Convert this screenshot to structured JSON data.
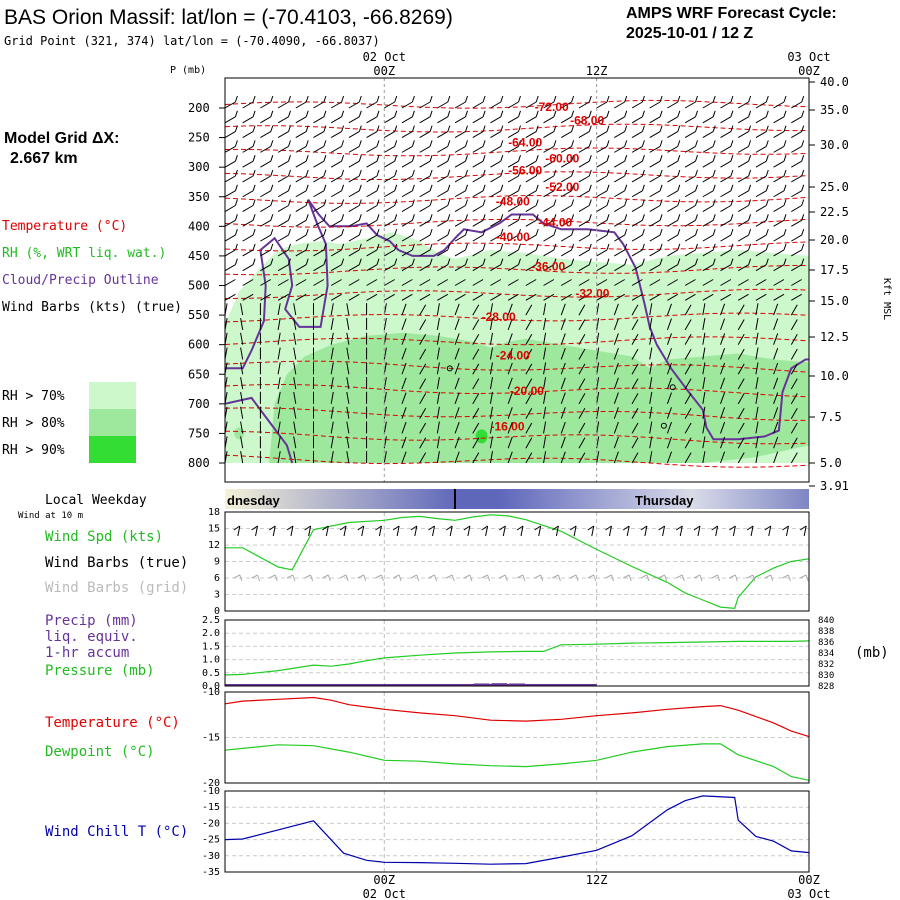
{
  "header": {
    "title": "BAS Orion Massif:  lat/lon = (-70.4103, -66.8269)",
    "subtitle": "Grid Point (321, 374) lat/lon = (-70.4090, -66.8037)",
    "cycle_line1": "AMPS WRF Forecast Cycle:",
    "cycle_line2": "2025-10-01 / 12  Z"
  },
  "sidebar": {
    "model_grid_label": "Model Grid ΔX:",
    "model_grid_value": "2.667 km",
    "temperature": "Temperature (°C)",
    "rh": "RH (%, WRT liq. wat.)",
    "cloud": "Cloud/Precip Outline",
    "wind": "Wind Barbs (kts) (true)",
    "legend": [
      {
        "label": "RH > 70%",
        "color": "#ccf8cc"
      },
      {
        "label": "RH > 80%",
        "color": "#9ee89e"
      },
      {
        "label": "RH > 90%",
        "color": "#33dd33"
      }
    ]
  },
  "colors": {
    "temperature": "#e00000",
    "dewpoint": "#22cc22",
    "windchill": "#0000aa",
    "cloud": "#663399",
    "precip": "#663399",
    "pressure": "#22cc22"
  },
  "time_axis": {
    "top_ticks": [
      {
        "l1": "02 Oct",
        "l2": "00Z"
      },
      {
        "l1": "",
        "l2": "12Z"
      },
      {
        "l1": "03 Oct",
        "l2": "00Z"
      }
    ],
    "bottom_ticks": [
      {
        "l1": "00Z",
        "l2": "02 Oct"
      },
      {
        "l1": "12Z",
        "l2": ""
      },
      {
        "l1": "00Z",
        "l2": "03 Oct"
      }
    ],
    "weekday_label": "Local Weekday",
    "weekday_left": "dnesday",
    "weekday_right": "Thursday"
  },
  "chart_data": [
    {
      "type": "contour",
      "ylabel_left": "P (mb)",
      "ylabel_right": "Kft MSL",
      "pressure_ticks": [
        "200",
        "250",
        "300",
        "350",
        "400",
        "450",
        "500",
        "550",
        "600",
        "650",
        "700",
        "750",
        "800"
      ],
      "height_ticks": [
        "40.0",
        "35.0",
        "30.0",
        "25.0",
        "22.5",
        "20.0",
        "17.5",
        "15.0",
        "12.5",
        "10.0",
        "7.5",
        "5.0",
        "3.91"
      ],
      "isotherm_labels": [
        {
          "text": "-72.00",
          "t": 8.5,
          "p": 205
        },
        {
          "text": "-68.00",
          "t": 10.5,
          "p": 228
        },
        {
          "text": "-64.00",
          "t": 7.0,
          "p": 265
        },
        {
          "text": "-60.00",
          "t": 9.1,
          "p": 292
        },
        {
          "text": "-56.00",
          "t": 7.0,
          "p": 312
        },
        {
          "text": "-52.00",
          "t": 9.1,
          "p": 340
        },
        {
          "text": "-48.00",
          "t": 6.3,
          "p": 365
        },
        {
          "text": "-44.00",
          "t": 8.7,
          "p": 400
        },
        {
          "text": "-40.00",
          "t": 6.3,
          "p": 425
        },
        {
          "text": "-36.00",
          "t": 8.3,
          "p": 475
        },
        {
          "text": "-32.00",
          "t": 10.8,
          "p": 520
        },
        {
          "text": "-28.00",
          "t": 5.5,
          "p": 560
        },
        {
          "text": "-24.00",
          "t": 6.3,
          "p": 625
        },
        {
          "text": "-20.00",
          "t": 7.1,
          "p": 685
        },
        {
          "text": "-16.00",
          "t": 6.0,
          "p": 745
        }
      ]
    },
    {
      "type": "line",
      "name_labels": [
        "Wind at 10 m",
        "Wind Spd (kts)",
        "Wind Barbs (true)",
        "Wind Barbs (grid)"
      ],
      "ylim": [
        0,
        18
      ],
      "yticks": [
        "18",
        "15",
        "12",
        "9",
        "6",
        "3",
        "0"
      ],
      "series": [
        {
          "x": [
            -9,
            -8,
            -6,
            -5.2,
            -4,
            -2,
            0,
            1,
            2,
            3,
            4,
            5,
            6,
            7,
            8,
            10,
            12,
            14,
            16,
            17,
            18,
            19,
            19.8,
            20,
            21,
            22,
            23,
            24
          ],
          "values": [
            11.5,
            11.5,
            8,
            7.5,
            14.8,
            16.1,
            16.5,
            17,
            17.2,
            16.8,
            16.5,
            17.1,
            17.5,
            17.3,
            16.6,
            14.5,
            11.2,
            8.1,
            5.2,
            3.3,
            2,
            0.7,
            0.5,
            2.5,
            6.2,
            7.8,
            9,
            9.5
          ]
        }
      ]
    },
    {
      "type": "line",
      "name_labels": [
        "Precip (mm)",
        "liq. equiv.",
        "1-hr accum",
        "Pressure (mb)"
      ],
      "ylim_left": [
        0,
        2.5
      ],
      "yticks_left": [
        "2.5",
        "2.0",
        "1.5",
        "1.0",
        "0.5",
        "0.0"
      ],
      "ylim_right": [
        828,
        840
      ],
      "yticks_right": [
        "840",
        "838",
        "836",
        "834",
        "832",
        "830",
        "828"
      ],
      "unit_right": "(mb)",
      "series": [
        {
          "x": [
            -9,
            -8,
            -6,
            -4,
            -3,
            -2,
            -1,
            0,
            2,
            4,
            6,
            8,
            9,
            10,
            12,
            14,
            16,
            18,
            20,
            22,
            23,
            24
          ],
          "values": [
            830.0,
            830.1,
            830.8,
            831.8,
            831.6,
            832.0,
            832.6,
            833.1,
            833.6,
            834.0,
            834.2,
            834.3,
            834.3,
            835.5,
            835.6,
            835.8,
            835.9,
            836.0,
            836.1,
            836.1,
            836.1,
            836.2
          ]
        }
      ],
      "precip_bars": [
        {
          "x": 5.5,
          "value": 0.02
        },
        {
          "x": 6.5,
          "value": 0.03
        },
        {
          "x": 7.5,
          "value": 0.02
        }
      ]
    },
    {
      "type": "line",
      "name_labels": [
        "Temperature (°C)",
        "Dewpoint (°C)"
      ],
      "ylim": [
        -20,
        -10
      ],
      "yticks": [
        "-10",
        "-15",
        "-20"
      ],
      "series": [
        {
          "name": "Temperature",
          "x": [
            -9,
            -8,
            -6,
            -4,
            -3,
            -2,
            0,
            2,
            4,
            6,
            8,
            10,
            12,
            14,
            16,
            18,
            19,
            20,
            22,
            23,
            24
          ],
          "values": [
            -11.3,
            -11,
            -10.8,
            -10.6,
            -10.9,
            -11.4,
            -11.9,
            -12.3,
            -12.6,
            -13.1,
            -13.2,
            -13.0,
            -12.6,
            -12.3,
            -11.9,
            -11.6,
            -11.5,
            -12.0,
            -13.4,
            -14.3,
            -14.9
          ]
        },
        {
          "name": "Dewpoint",
          "x": [
            -9,
            -8,
            -6,
            -4,
            -2,
            0,
            2,
            4,
            6,
            8,
            10,
            12,
            14,
            16,
            18,
            19,
            20,
            22,
            23,
            24
          ],
          "values": [
            -16.4,
            -16.2,
            -15.8,
            -15.9,
            -16.6,
            -17.5,
            -17.6,
            -17.9,
            -18.1,
            -18.2,
            -17.9,
            -17.5,
            -16.6,
            -16.0,
            -15.7,
            -15.7,
            -16.9,
            -18.2,
            -19.3,
            -19.7
          ]
        }
      ]
    },
    {
      "type": "line",
      "name_labels": [
        "Wind Chill T (°C)"
      ],
      "ylim": [
        -35,
        -10
      ],
      "yticks": [
        "-10",
        "-15",
        "-20",
        "-25",
        "-30",
        "-35"
      ],
      "series": [
        {
          "x": [
            -9,
            -8,
            -6,
            -4,
            -2.3,
            -1,
            0,
            2,
            4,
            6,
            8,
            10,
            12,
            14,
            16,
            17,
            18,
            19.8,
            20,
            21,
            22,
            23,
            24
          ],
          "values": [
            -25,
            -24.8,
            -22,
            -19.2,
            -29.2,
            -31.4,
            -32,
            -32.1,
            -32.3,
            -32.6,
            -32.4,
            -30.4,
            -28.3,
            -23.8,
            -15.8,
            -13,
            -11.5,
            -12,
            -19,
            -24,
            -25.5,
            -28.5,
            -29
          ]
        }
      ]
    }
  ]
}
